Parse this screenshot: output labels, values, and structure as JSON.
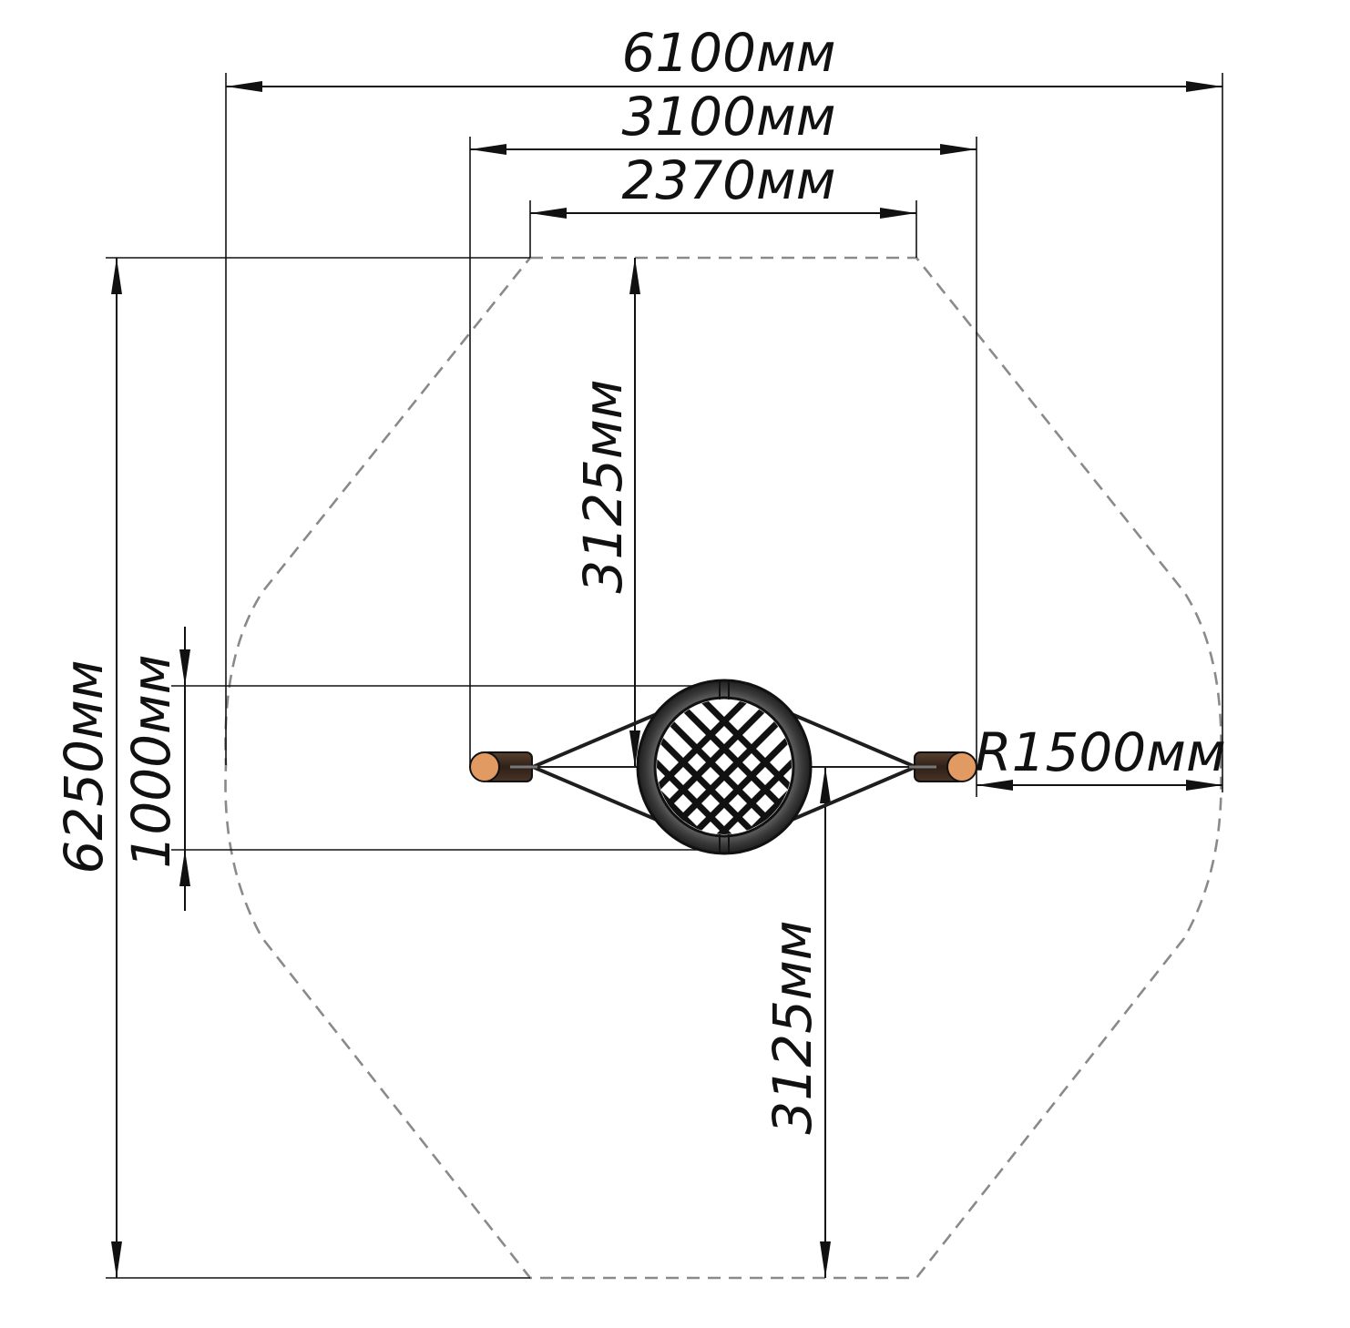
{
  "dimensions": {
    "overall_width": "6100мм",
    "frame_width": "3100мм",
    "zone_top_width": "2370мм",
    "overall_depth": "6250мм",
    "seat_diameter": "1000мм",
    "upper_half_depth": "3125мм",
    "lower_half_depth": "3125мм",
    "radius": "R1500мм"
  },
  "colors": {
    "line": "#111111",
    "safety_zone": "#8a8a8a",
    "seat_ring": "#4d4d4d",
    "net": "#111111",
    "post_wood": "#e09a62",
    "post_dark": "#3b2a20"
  }
}
